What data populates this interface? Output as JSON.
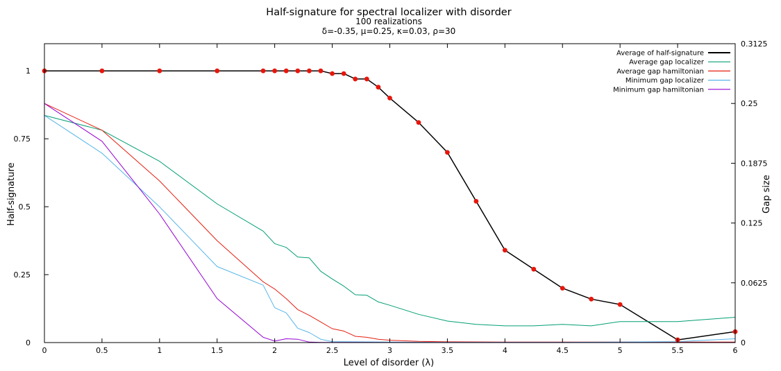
{
  "chart_data": {
    "type": "line",
    "title": "Half-signature for spectral localizer with disorder",
    "subtitle_line1": "100 realizations",
    "subtitle_line2": "δ=-0.35, μ=0.25, κ=0.03, ρ=30",
    "xlabel": "Level of disorder (λ)",
    "ylabel": "Half-signature",
    "y2label": "Gap size",
    "xlim": [
      0,
      6
    ],
    "ylim": [
      0,
      1.1
    ],
    "y2lim": [
      0,
      0.3125
    ],
    "grid": false,
    "legend_position": "top-right",
    "x_ticks": [
      {
        "value": 0,
        "label": "0"
      },
      {
        "value": 0.5,
        "label": "0.5"
      },
      {
        "value": 1,
        "label": "1"
      },
      {
        "value": 1.5,
        "label": "1.5"
      },
      {
        "value": 2,
        "label": "2"
      },
      {
        "value": 2.5,
        "label": "2.5"
      },
      {
        "value": 3,
        "label": "3"
      },
      {
        "value": 3.5,
        "label": "3.5"
      },
      {
        "value": 4,
        "label": "4"
      },
      {
        "value": 4.5,
        "label": "4.5"
      },
      {
        "value": 5,
        "label": "5"
      },
      {
        "value": 5.5,
        "label": "5.5"
      },
      {
        "value": 6,
        "label": "6"
      }
    ],
    "y_ticks": [
      {
        "value": 0,
        "label": "0"
      },
      {
        "value": 0.25,
        "label": "0.25"
      },
      {
        "value": 0.5,
        "label": "0.5"
      },
      {
        "value": 0.75,
        "label": "0.75"
      },
      {
        "value": 1,
        "label": "1"
      }
    ],
    "y2_ticks": [
      {
        "value": 0,
        "label": "0"
      },
      {
        "value": 0.0625,
        "label": "0.0625"
      },
      {
        "value": 0.125,
        "label": "0.125"
      },
      {
        "value": 0.1875,
        "label": "0.1875"
      },
      {
        "value": 0.25,
        "label": "0.25"
      },
      {
        "value": 0.3125,
        "label": "0.3125"
      }
    ],
    "series": [
      {
        "name": "Average of half-signature",
        "axis": "y",
        "color": "#000000",
        "marker_color": "#e8160c",
        "markers": true,
        "x": [
          0,
          0.5,
          1,
          1.5,
          1.9,
          2,
          2.1,
          2.2,
          2.3,
          2.4,
          2.5,
          2.6,
          2.7,
          2.8,
          2.9,
          3,
          3.25,
          3.5,
          3.75,
          4,
          4.25,
          4.5,
          4.75,
          5,
          5.5,
          6
        ],
        "values": [
          1,
          1,
          1,
          1,
          1,
          1,
          1,
          1,
          1,
          1,
          0.99,
          0.99,
          0.97,
          0.97,
          0.94,
          0.9,
          0.81,
          0.7,
          0.52,
          0.34,
          0.27,
          0.2,
          0.16,
          0.14,
          0.01,
          0.04
        ]
      },
      {
        "name": "Average gap localizer",
        "axis": "y2",
        "color": "#009e73",
        "markers": false,
        "x": [
          0,
          0.5,
          1,
          1.5,
          1.9,
          2,
          2.1,
          2.2,
          2.3,
          2.4,
          2.5,
          2.6,
          2.7,
          2.8,
          2.9,
          3,
          3.25,
          3.5,
          3.75,
          4,
          4.25,
          4.5,
          4.75,
          5,
          5.5,
          6
        ],
        "values": [
          0.2375,
          0.222,
          0.1895,
          0.145,
          0.1165,
          0.1035,
          0.0995,
          0.0895,
          0.0885,
          0.0745,
          0.0665,
          0.059,
          0.05,
          0.0495,
          0.0425,
          0.039,
          0.0295,
          0.0225,
          0.019,
          0.0175,
          0.0175,
          0.019,
          0.0175,
          0.022,
          0.022,
          0.0265
        ]
      },
      {
        "name": "Average gap hamiltonian",
        "axis": "y2",
        "color": "#e51e10",
        "markers": false,
        "x": [
          0,
          0.5,
          1,
          1.5,
          1.9,
          2,
          2.1,
          2.2,
          2.3,
          2.4,
          2.5,
          2.6,
          2.7,
          2.8,
          2.9,
          3,
          3.25,
          3.5,
          4,
          4.5,
          5,
          5.5,
          6
        ],
        "values": [
          0.25,
          0.222,
          0.169,
          0.1065,
          0.0635,
          0.056,
          0.046,
          0.0345,
          0.0285,
          0.0215,
          0.0145,
          0.012,
          0.0065,
          0.0055,
          0.0035,
          0.0025,
          0.0012,
          0.0008,
          0.0006,
          0.0005,
          0.0005,
          0.0005,
          0.0005
        ]
      },
      {
        "name": "Minimum gap localizer",
        "axis": "y2",
        "color": "#56b4e9",
        "markers": false,
        "x": [
          0,
          0.5,
          1,
          1.5,
          1.9,
          2,
          2.1,
          2.2,
          2.3,
          2.4,
          2.5,
          3,
          3.5,
          4,
          4.5,
          5,
          5.5,
          6
        ],
        "values": [
          0.2375,
          0.198,
          0.142,
          0.0795,
          0.06,
          0.0365,
          0.031,
          0.015,
          0.0105,
          0.0035,
          0.001,
          0.0005,
          0.0003,
          0.0003,
          0.0003,
          0.0005,
          0.001,
          0.004
        ]
      },
      {
        "name": "Minimum gap hamiltonian",
        "axis": "y2",
        "color": "#9400d3",
        "markers": false,
        "x": [
          0,
          0.5,
          1,
          1.5,
          1.9,
          2,
          2.1,
          2.2,
          2.3,
          2.4,
          3,
          4,
          5,
          6
        ],
        "values": [
          0.25,
          0.2105,
          0.1345,
          0.046,
          0.0055,
          0.0015,
          0.004,
          0.0035,
          0.0005,
          0.0002,
          0.0001,
          0.0001,
          0.0001,
          0.0001
        ]
      }
    ]
  }
}
